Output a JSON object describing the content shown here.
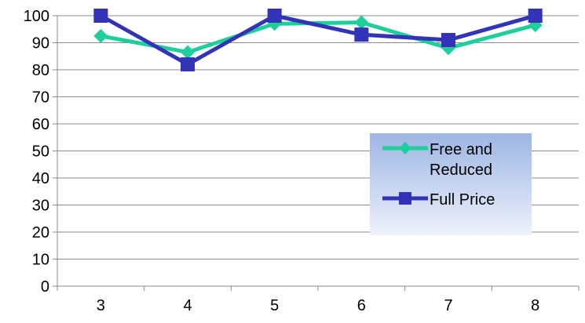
{
  "chart_data": {
    "type": "line",
    "title": "",
    "xlabel": "",
    "ylabel": "",
    "categories": [
      "3",
      "4",
      "5",
      "6",
      "7",
      "8"
    ],
    "ylim": [
      0,
      100
    ],
    "yticks": [
      "0",
      "10",
      "20",
      "30",
      "40",
      "50",
      "60",
      "70",
      "80",
      "90",
      "100"
    ],
    "grid": true,
    "legend_position": "right",
    "series": [
      {
        "name": "Free and Reduced",
        "values": [
          92.5,
          86.5,
          97,
          97.5,
          88,
          96.5
        ],
        "color": "#1fcf9b",
        "marker": "diamond"
      },
      {
        "name": "Full Price",
        "values": [
          100,
          82,
          100,
          93,
          91,
          100
        ],
        "color": "#3333b8",
        "marker": "square"
      }
    ]
  }
}
